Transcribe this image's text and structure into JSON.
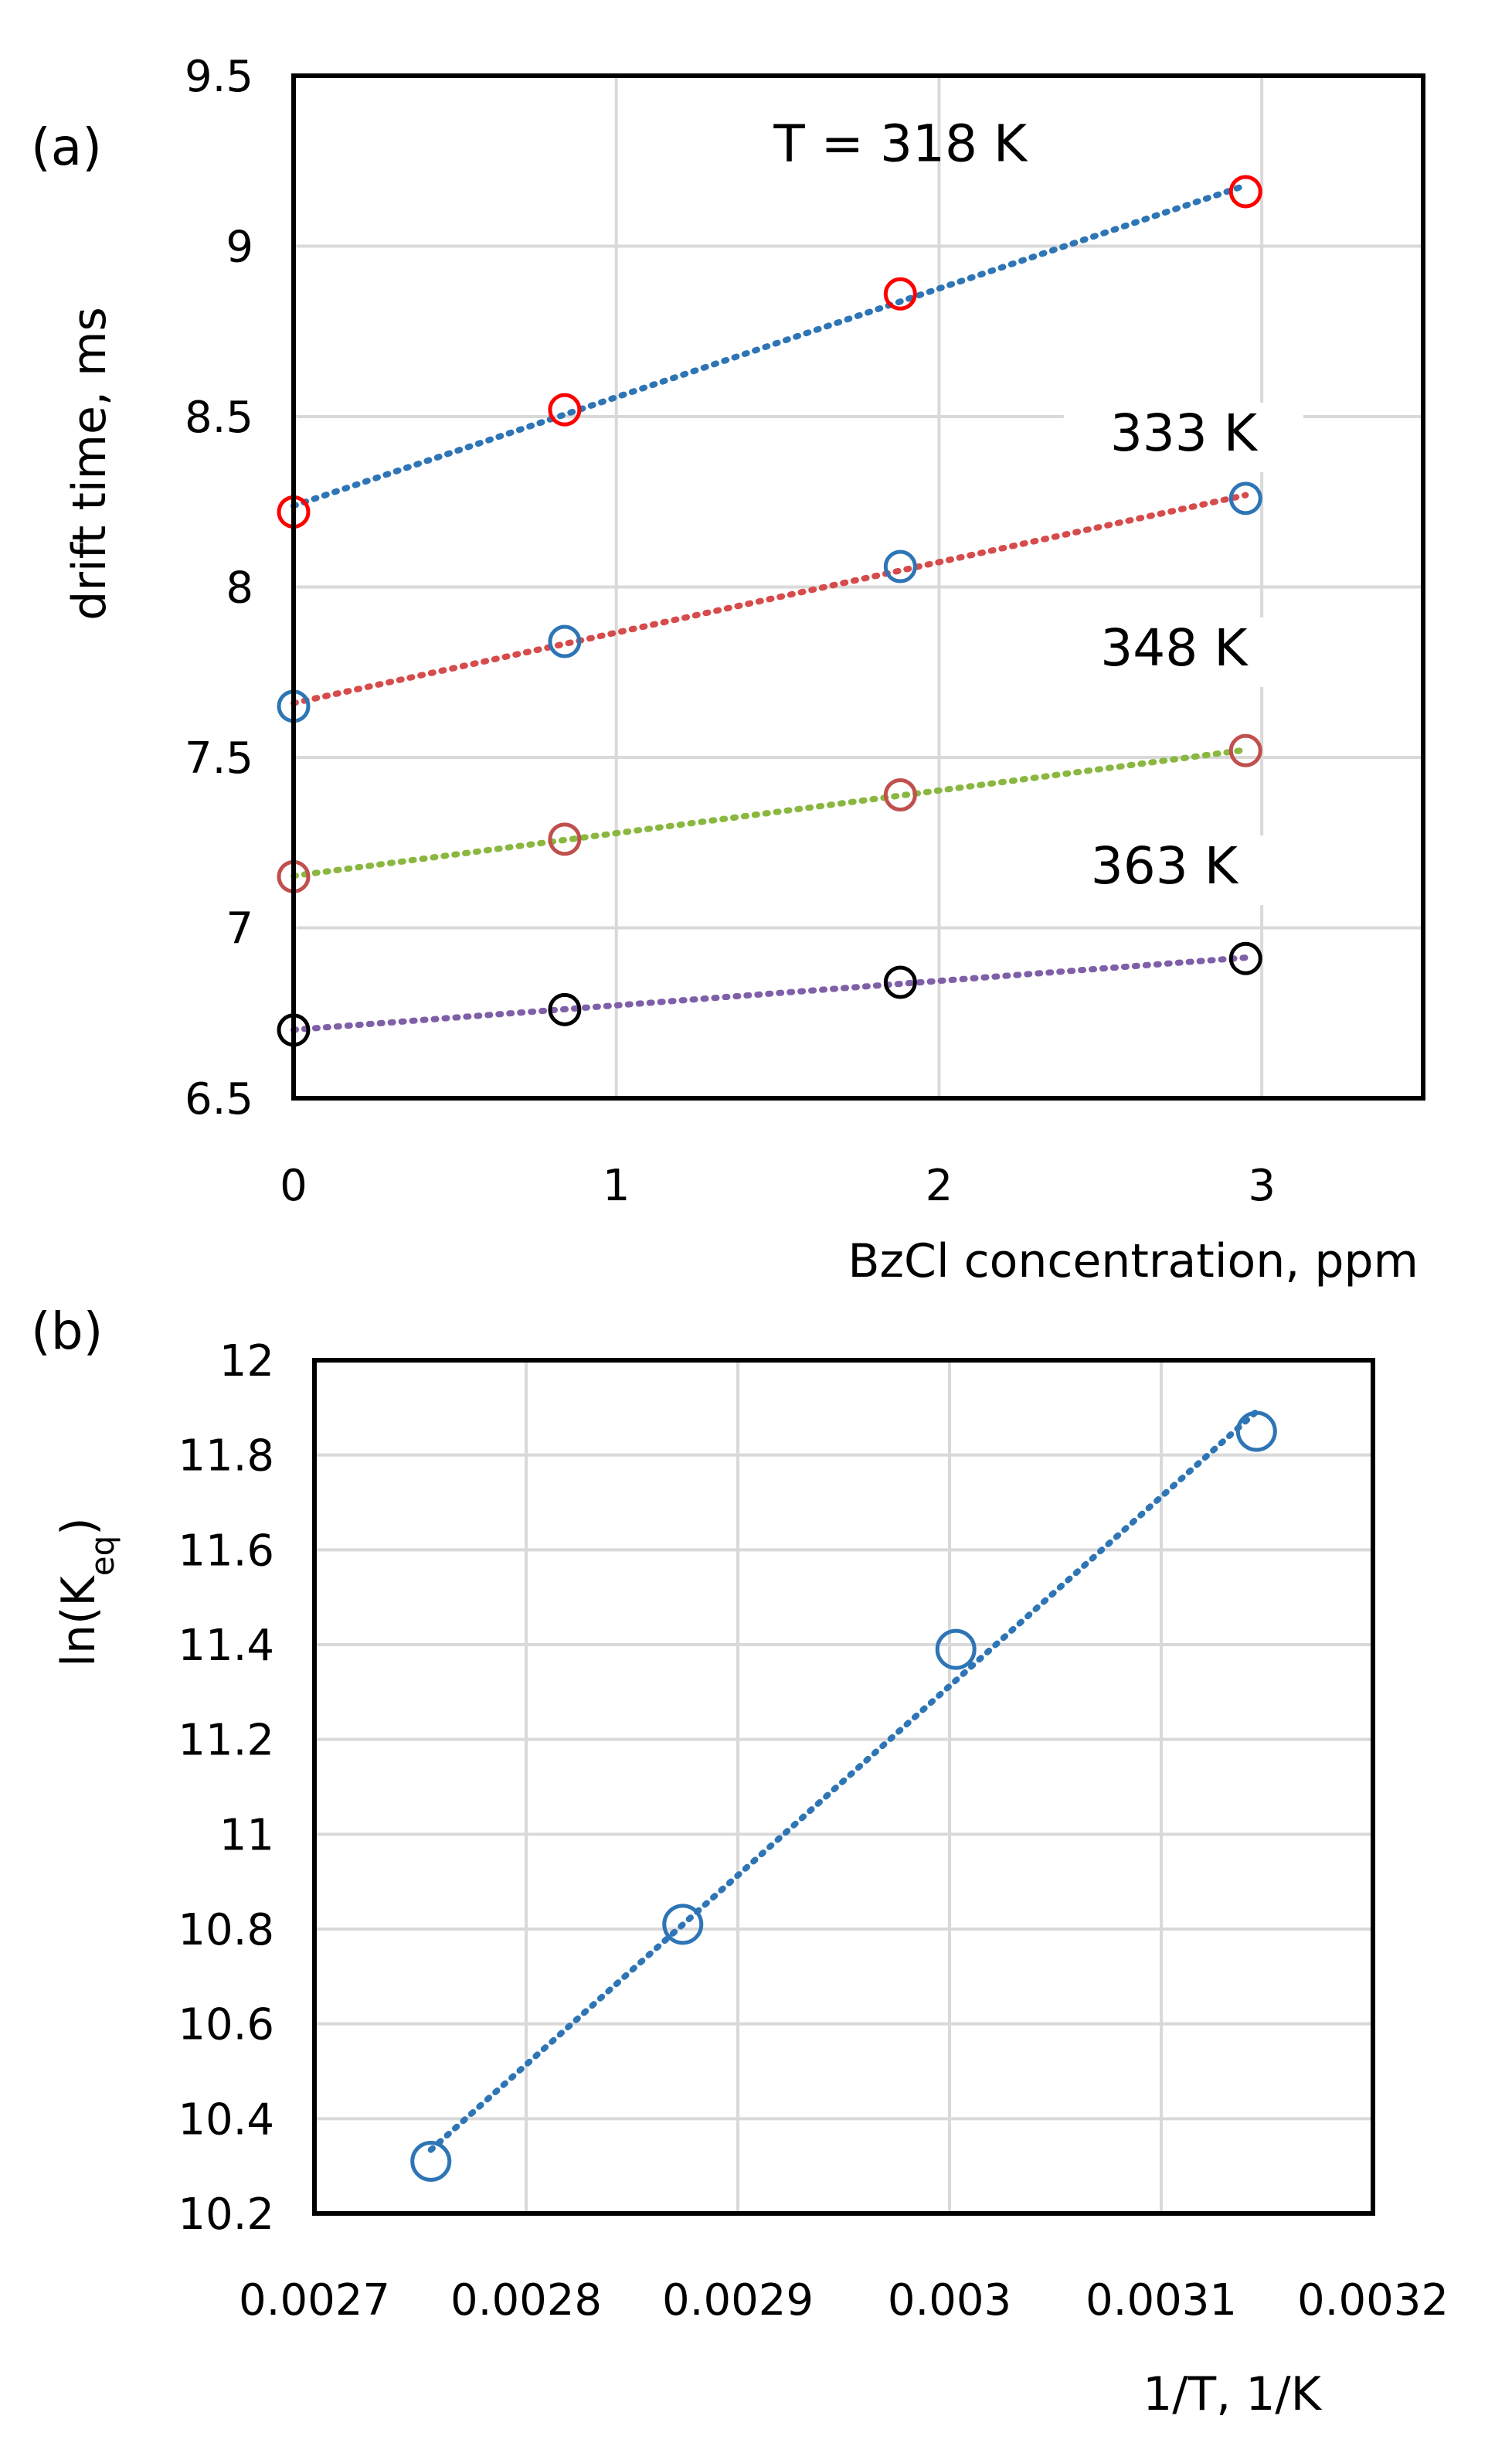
{
  "chart_data": [
    {
      "panel": "(a)",
      "type": "scatter",
      "xlabel": "BzCl concentration, ppm",
      "ylabel": "drift time, ms",
      "xlim": [
        0,
        3.5
      ],
      "ylim": [
        6.5,
        9.5
      ],
      "x_ticks": [
        0,
        1,
        2,
        3
      ],
      "x_tick_labels": [
        "0",
        "1",
        "2",
        "3"
      ],
      "y_ticks": [
        6.5,
        7,
        7.5,
        8,
        8.5,
        9,
        9.5
      ],
      "y_tick_labels": [
        "6.5",
        "7",
        "7.5",
        "8",
        "8.5",
        "9",
        "9.5"
      ],
      "grid": true,
      "series": [
        {
          "name": "T = 318 K",
          "x": [
            0,
            0.84,
            1.88,
            2.95
          ],
          "values": [
            8.22,
            8.52,
            8.86,
            9.16
          ],
          "marker_color": "#ff0000",
          "trend_color": "#2e75b6",
          "label_anchor": [
            1.88,
            9.25
          ]
        },
        {
          "name": "333 K",
          "x": [
            0,
            0.84,
            1.88,
            2.95
          ],
          "values": [
            7.65,
            7.84,
            8.06,
            8.26
          ],
          "marker_color": "#2e75b6",
          "trend_color": "#d64b4b",
          "label_anchor": [
            2.53,
            8.4
          ]
        },
        {
          "name": "348 K",
          "x": [
            0,
            0.84,
            1.88,
            2.95
          ],
          "values": [
            7.15,
            7.26,
            7.39,
            7.52
          ],
          "marker_color": "#c0504d",
          "trend_color": "#8ab73f",
          "label_anchor": [
            2.5,
            7.77
          ]
        },
        {
          "name": "363 K",
          "x": [
            0,
            0.84,
            1.88,
            2.95
          ],
          "values": [
            6.7,
            6.76,
            6.84,
            6.91
          ],
          "marker_color": "#000000",
          "trend_color": "#7f5fa8",
          "label_anchor": [
            2.47,
            7.13
          ]
        }
      ]
    },
    {
      "panel": "(b)",
      "type": "scatter",
      "xlabel": "1/T, 1/K",
      "ylabel": "ln(Keq)",
      "xlim": [
        0.0027,
        0.0032
      ],
      "ylim": [
        10.2,
        12
      ],
      "x_ticks": [
        0.0027,
        0.0028,
        0.0029,
        0.003,
        0.0031,
        0.0032
      ],
      "x_tick_labels": [
        "0.0027",
        "0.0028",
        "0.0029",
        "0.003",
        "0.0031",
        "0.0032"
      ],
      "y_ticks": [
        10.2,
        10.4,
        10.6,
        10.8,
        11,
        11.2,
        11.4,
        11.6,
        11.8,
        12
      ],
      "y_tick_labels": [
        "10.2",
        "10.4",
        "10.6",
        "10.8",
        "11",
        "11.2",
        "11.4",
        "11.6",
        "11.8",
        "12"
      ],
      "grid": true,
      "series": [
        {
          "name": "ln(Keq)",
          "x": [
            0.002755,
            0.002874,
            0.003003,
            0.003145
          ],
          "values": [
            10.31,
            10.81,
            11.39,
            11.85
          ],
          "marker_color": "#2e75b6",
          "trend_color": "#2e75b6"
        }
      ]
    }
  ]
}
